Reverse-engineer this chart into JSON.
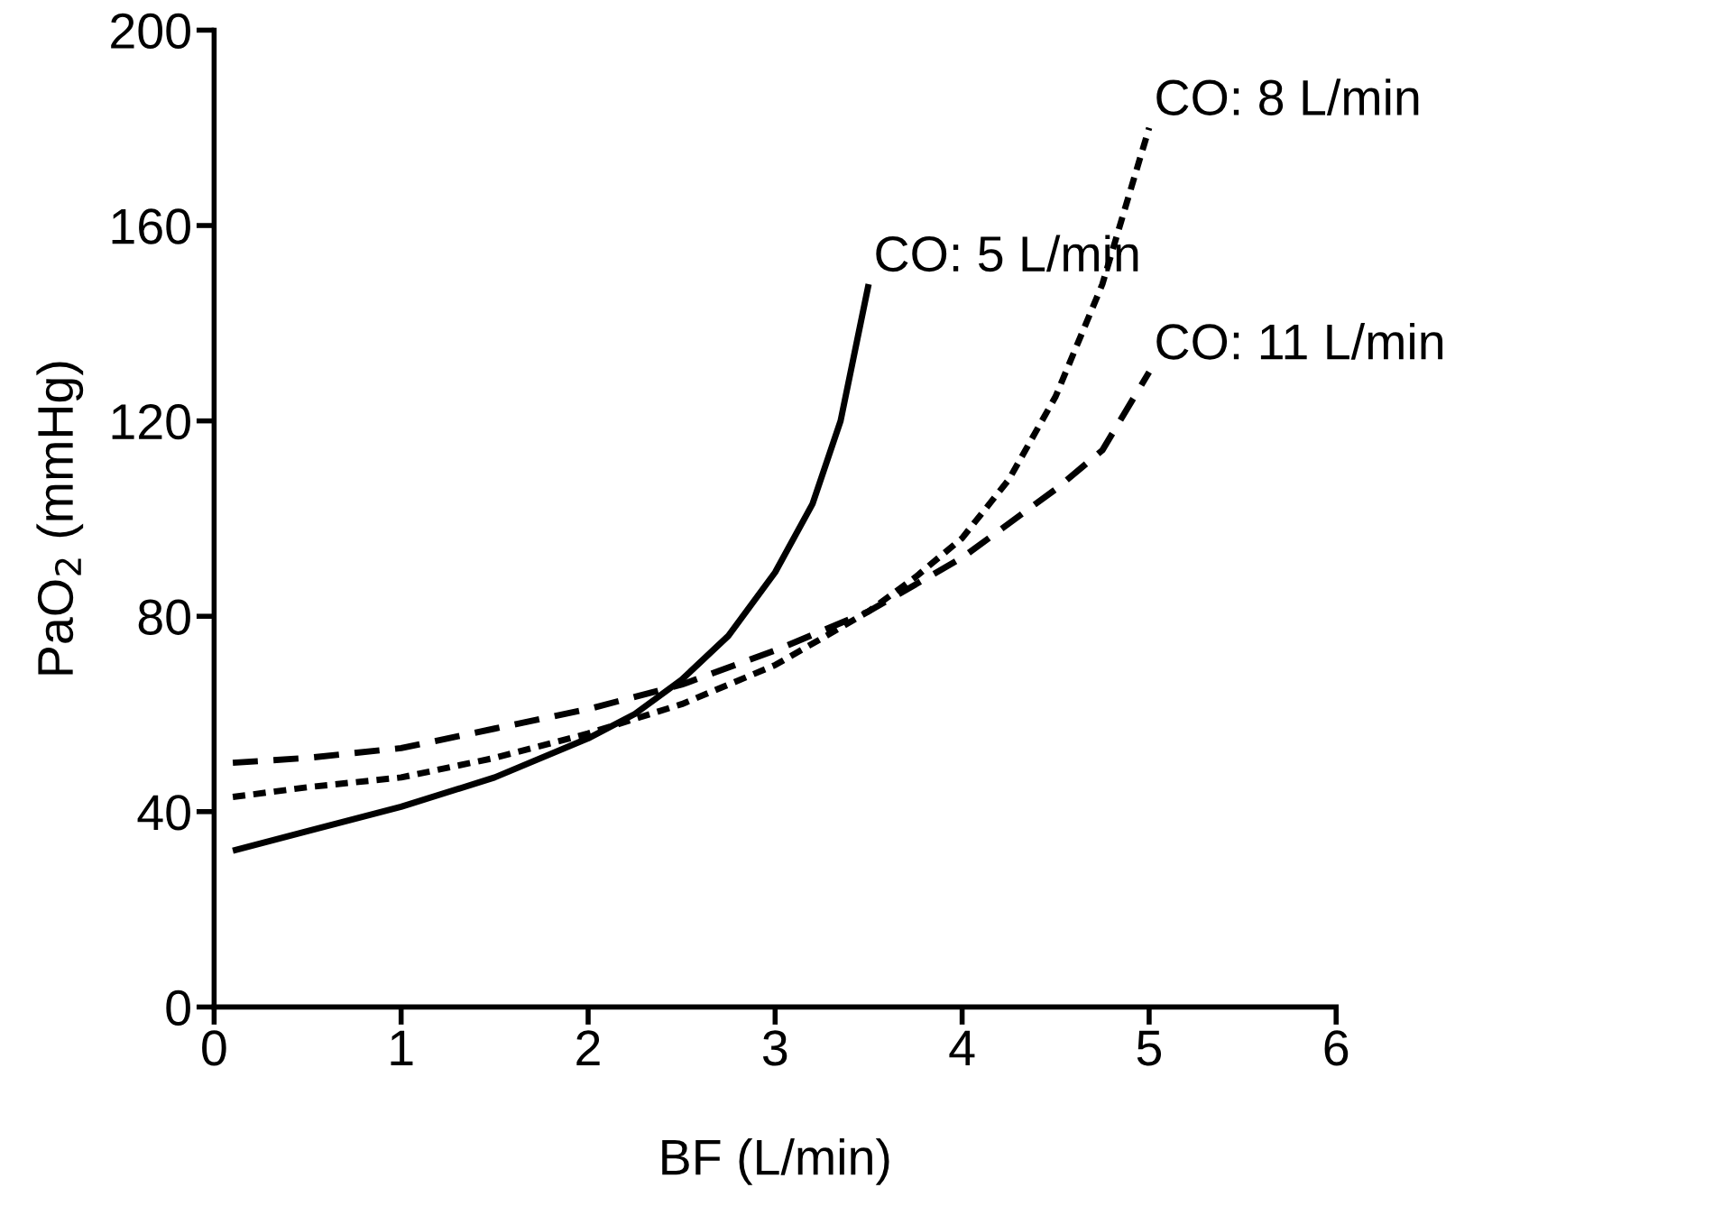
{
  "chart_data": {
    "type": "line",
    "xlabel": "BF (L/min)",
    "ylabel": "PaO$_{2}$ (mmHg)",
    "xlim": [
      0,
      6
    ],
    "ylim": [
      0,
      200
    ],
    "xticks": [
      0,
      1,
      2,
      3,
      4,
      5,
      6
    ],
    "yticks": [
      0,
      40,
      80,
      120,
      160,
      200
    ],
    "grid": false,
    "legend": false,
    "series": [
      {
        "name": "CO: 5 L/min",
        "color": "#000000",
        "line_style": "solid",
        "x": [
          0.1,
          0.5,
          1,
          1.5,
          2,
          2.25,
          2.5,
          2.75,
          3,
          3.2,
          3.35,
          3.5
        ],
        "values": [
          32,
          36,
          41,
          47,
          55,
          60,
          67,
          76,
          89,
          103,
          120,
          148
        ]
      },
      {
        "name": "CO: 8 L/min",
        "color": "#000000",
        "line_style": "dotted",
        "x": [
          0.1,
          0.5,
          1,
          1.5,
          2,
          2.5,
          3,
          3.5,
          3.75,
          4,
          4.25,
          4.5,
          4.75,
          5
        ],
        "values": [
          43,
          45,
          47,
          51,
          56,
          62,
          70,
          81,
          88,
          96,
          108,
          125,
          148,
          180
        ]
      },
      {
        "name": "CO: 11 L/min",
        "color": "#000000",
        "line_style": "dashed",
        "x": [
          0.1,
          0.5,
          1,
          1.5,
          2,
          2.5,
          3,
          3.5,
          4,
          4.5,
          4.75,
          5
        ],
        "values": [
          50,
          51,
          53,
          57,
          61,
          66,
          73,
          81,
          92,
          106,
          114,
          130
        ]
      }
    ]
  }
}
